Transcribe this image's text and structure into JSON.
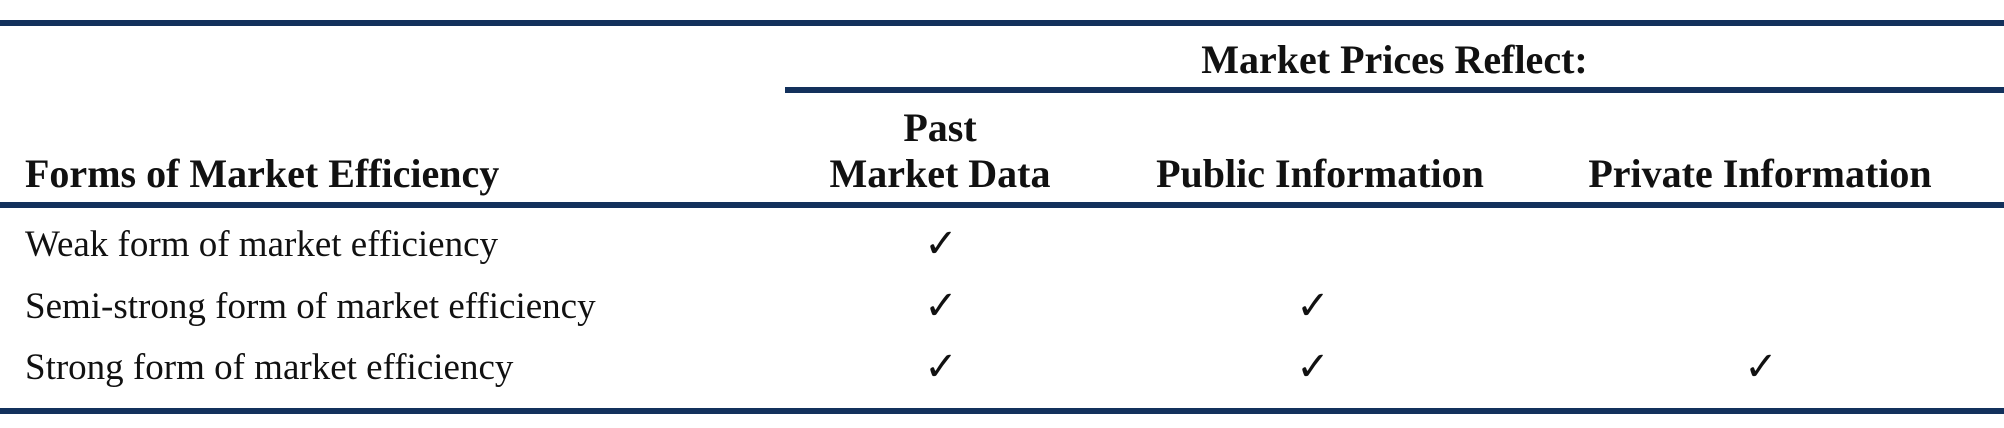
{
  "table": {
    "group_header": "Market Prices Reflect:",
    "row_header": "Forms of Market Efficiency",
    "columns": [
      {
        "label_line1": "Past",
        "label_line2": "Market Data"
      },
      {
        "label": "Public Information"
      },
      {
        "label": "Private Information"
      }
    ],
    "check_symbol": "✓",
    "rows": [
      {
        "label": "Weak form of market efficiency",
        "checks": [
          true,
          false,
          false
        ]
      },
      {
        "label": "Semi-strong form of market efficiency",
        "checks": [
          true,
          true,
          false
        ]
      },
      {
        "label": "Strong form of market efficiency",
        "checks": [
          true,
          true,
          true
        ]
      }
    ]
  },
  "colors": {
    "rule": "#13315c",
    "text": "#111111"
  }
}
